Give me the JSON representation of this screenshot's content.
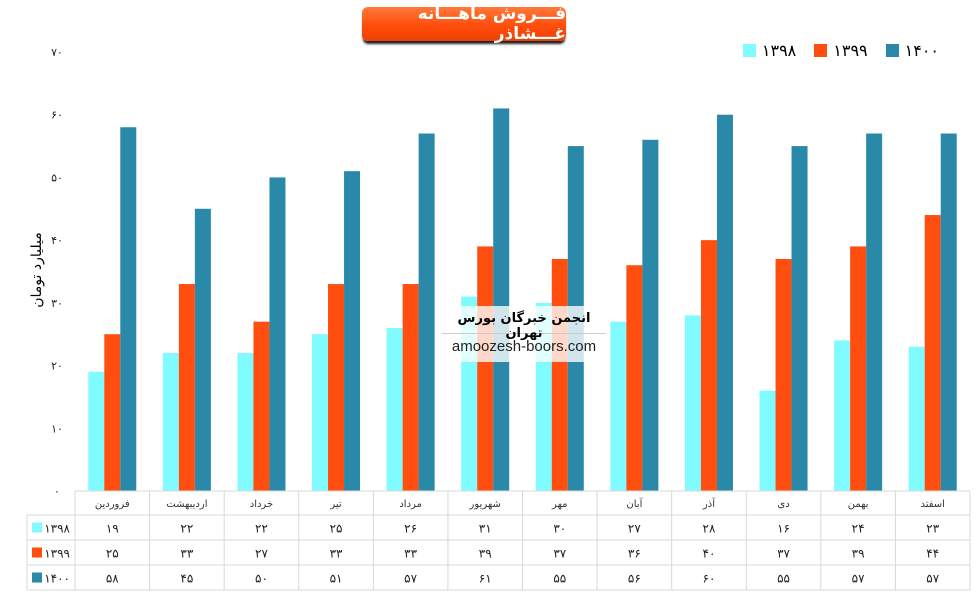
{
  "chart_data": {
    "type": "bar",
    "title": "فـــروش ماهـــانه غـــشاذر",
    "ylabel": "میلیارد تومان",
    "xlabel": "",
    "ylim": [
      0,
      70
    ],
    "yticks": [
      0,
      10,
      20,
      30,
      40,
      50,
      60,
      70
    ],
    "grid": false,
    "legend_position": "top-right",
    "categories": [
      "فروردین",
      "اردیبهشت",
      "خرداد",
      "تیر",
      "مرداد",
      "شهریور",
      "مهر",
      "آبان",
      "آذر",
      "دی",
      "بهمن",
      "اسفتد"
    ],
    "series": [
      {
        "name": "۱۳۹۸",
        "color": "#80fbff",
        "values": [
          19,
          22,
          22,
          25,
          26,
          31,
          30,
          27,
          28,
          16,
          24,
          23
        ]
      },
      {
        "name": "۱۳۹۹",
        "color": "#ff4e10",
        "values": [
          25,
          33,
          27,
          33,
          33,
          39,
          37,
          36,
          40,
          37,
          39,
          44
        ]
      },
      {
        "name": "۱۴۰۰",
        "color": "#2a89a8",
        "values": [
          58,
          45,
          50,
          51,
          57,
          61,
          55,
          56,
          60,
          55,
          57,
          57
        ]
      }
    ],
    "data_table": true
  },
  "watermark": {
    "line1": "انجمن خبرگان بورس تهران",
    "line2": "amoozesh-boors.com"
  }
}
